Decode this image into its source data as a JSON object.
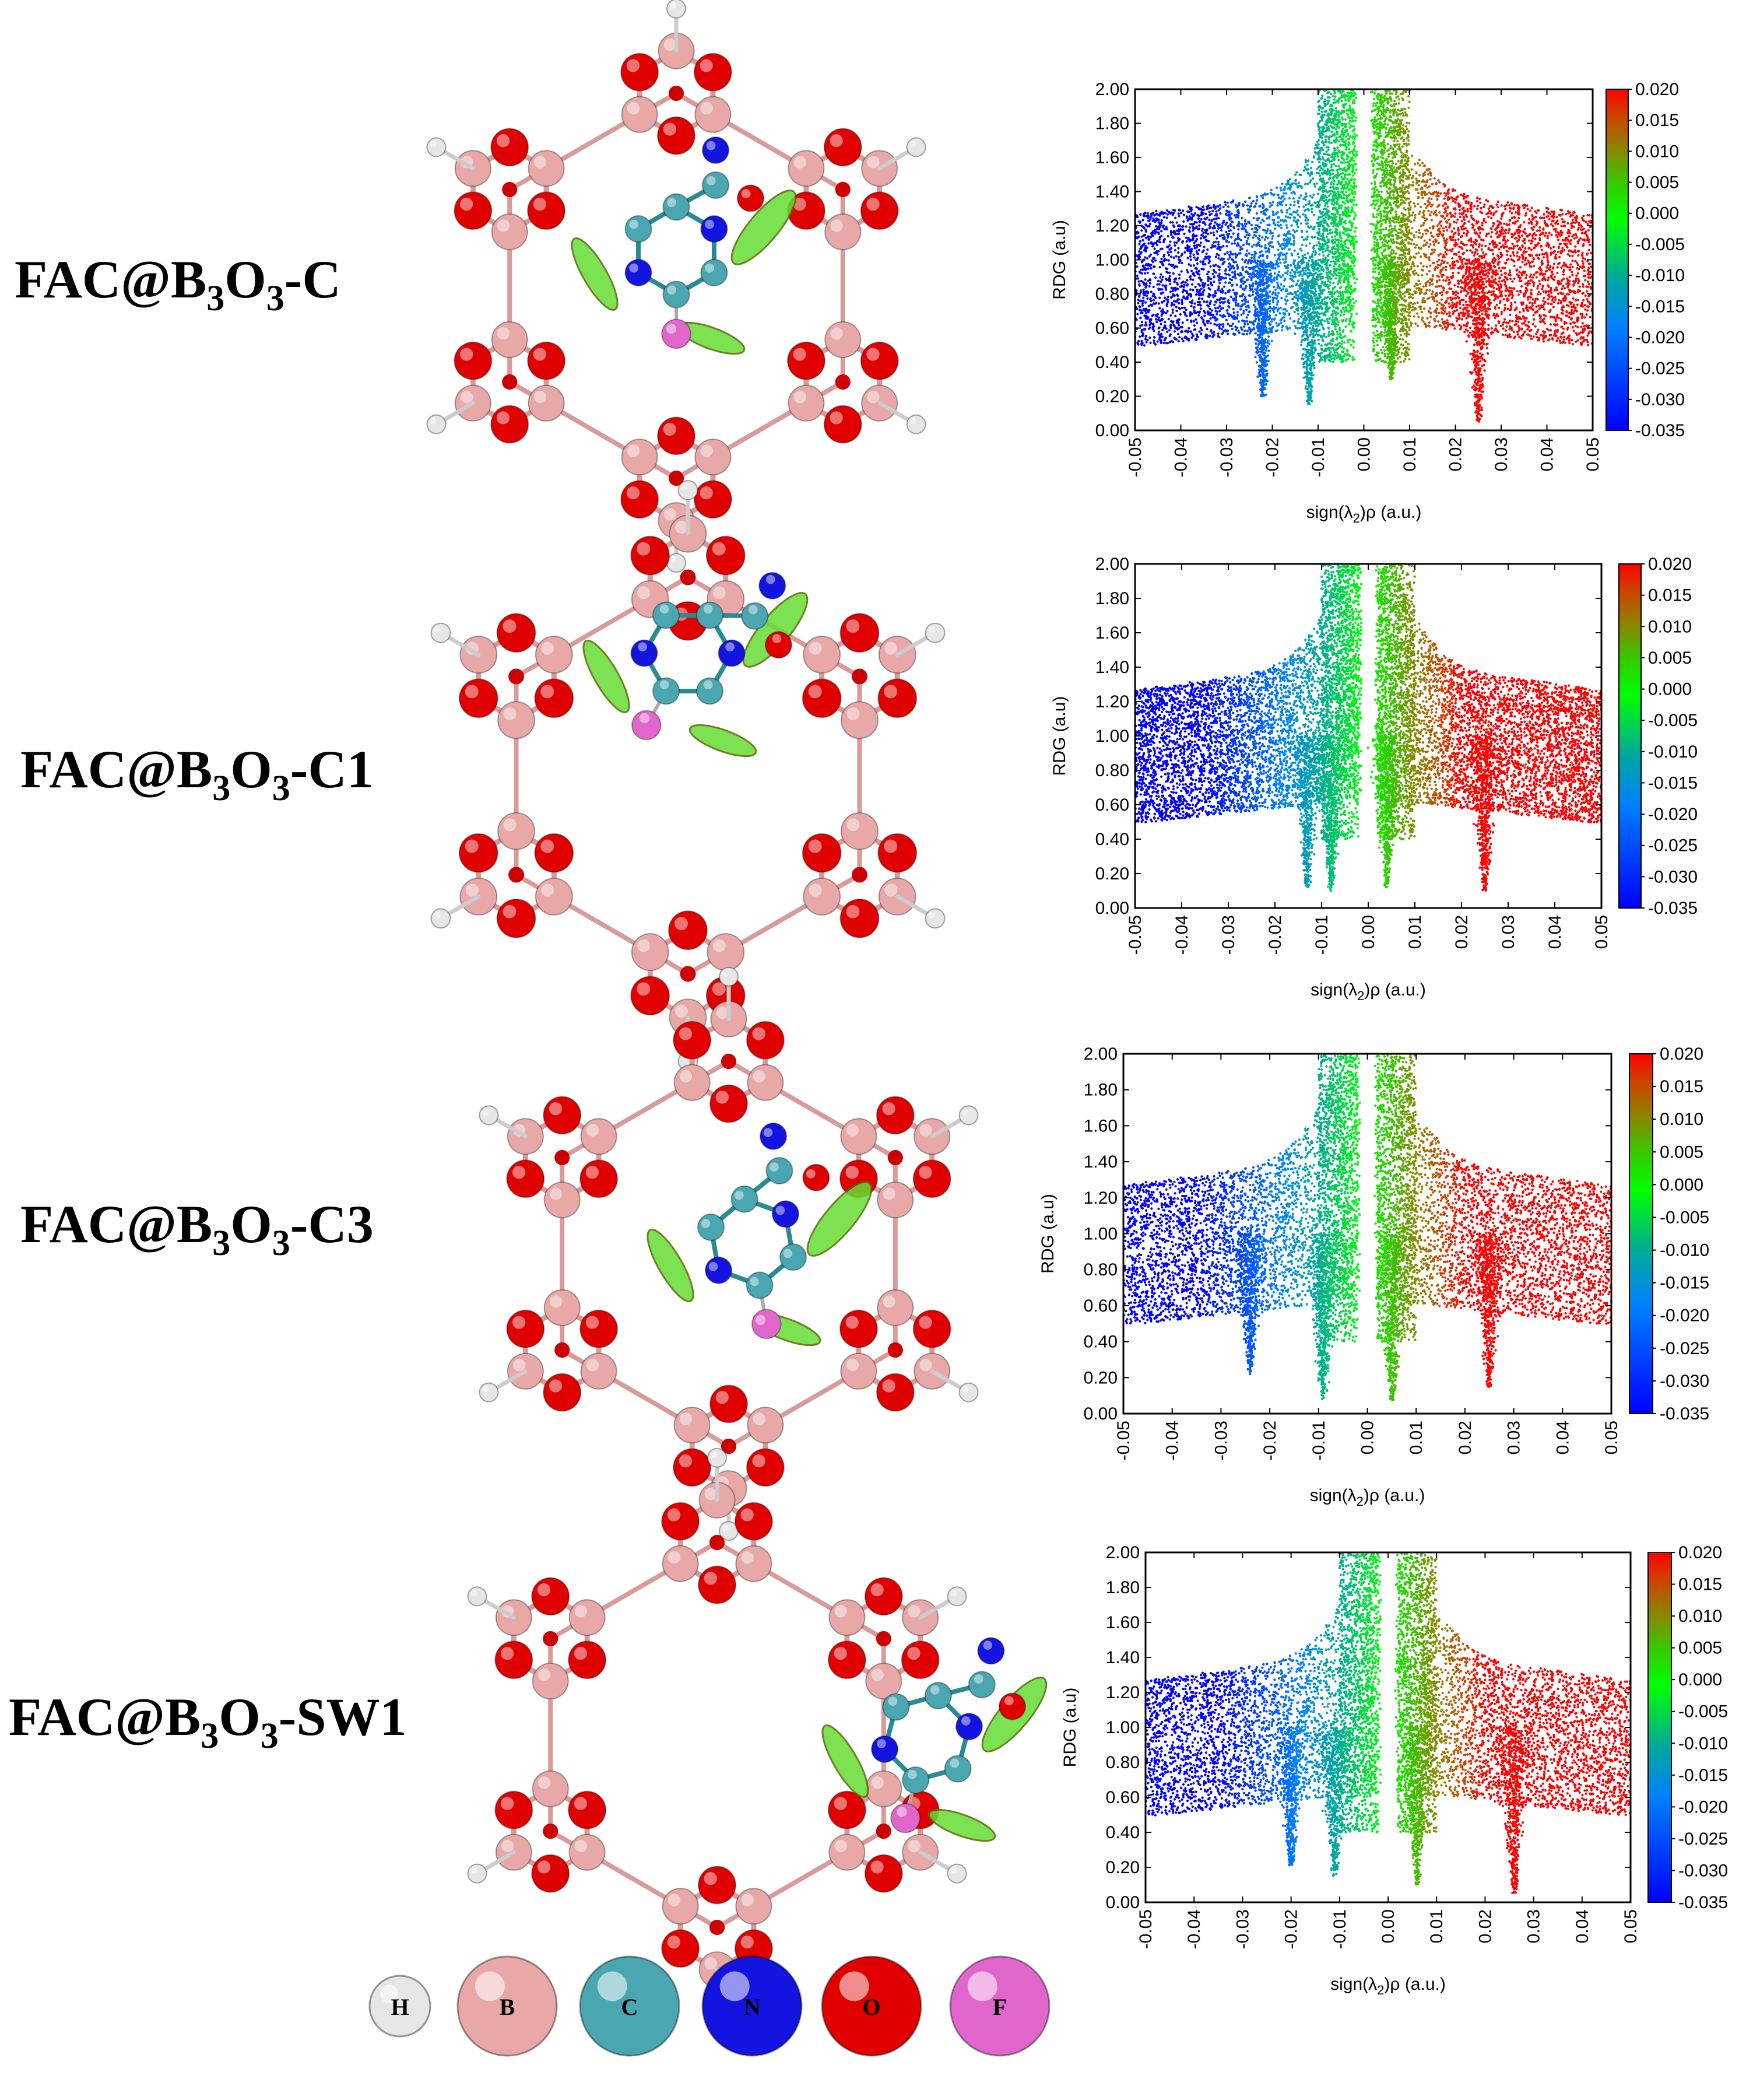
{
  "systems": [
    {
      "main": "FAC@B",
      "sub1": "3",
      "mid": "O",
      "sub2": "3",
      "suffix": "-C"
    },
    {
      "main": "FAC@B",
      "sub1": "3",
      "mid": "O",
      "sub2": "3",
      "suffix": "-C1"
    },
    {
      "main": "FAC@B",
      "sub1": "3",
      "mid": "O",
      "sub2": "3",
      "suffix": "-C3"
    },
    {
      "main": "FAC@B",
      "sub1": "3",
      "mid": "O",
      "sub2": "3",
      "suffix": "-SW1"
    }
  ],
  "atom_legend": [
    {
      "symbol": "H",
      "color": "#e6e6e6"
    },
    {
      "symbol": "B",
      "color": "#e8a8a8"
    },
    {
      "symbol": "C",
      "color": "#4aa6b0"
    },
    {
      "symbol": "N",
      "color": "#1414e0"
    },
    {
      "symbol": "O",
      "color": "#e00000"
    },
    {
      "symbol": "F",
      "color": "#e066cc"
    }
  ],
  "atom_colors": {
    "H": "#e6e6e6",
    "B": "#e8a8a8",
    "C": "#4aa6b0",
    "N": "#1414e0",
    "O": "#e00000",
    "F": "#e066cc",
    "bond": "#d99a9a"
  },
  "chart_data": [
    {
      "type": "scatter",
      "panel": "FAC@B3O3-C",
      "xlabel": "sign(λ2)ρ (a.u.)",
      "ylabel": "RDG (a.u)",
      "xlim": [
        -0.05,
        0.05
      ],
      "ylim": [
        0.0,
        2.0
      ],
      "xticks": [
        "-0.05",
        "-0.04",
        "-0.03",
        "-0.02",
        "-0.01",
        "0.00",
        "0.01",
        "0.02",
        "0.03",
        "0.04",
        "0.05"
      ],
      "yticks": [
        "0.00",
        "0.20",
        "0.40",
        "0.60",
        "0.80",
        "1.00",
        "1.20",
        "1.40",
        "1.60",
        "1.80",
        "2.00"
      ],
      "colorbar": {
        "range": [
          -0.035,
          0.02
        ],
        "ticks": [
          "0.020",
          "0.015",
          "0.010",
          "0.005",
          "0.000",
          "-0.005",
          "-0.010",
          "-0.015",
          "-0.020",
          "-0.025",
          "-0.030",
          "-0.035"
        ]
      },
      "spikes": [
        {
          "x": -0.022,
          "min": 0.18
        },
        {
          "x": -0.012,
          "min": 0.15
        },
        {
          "x": 0.006,
          "min": 0.3
        },
        {
          "x": 0.025,
          "min": 0.05
        }
      ]
    },
    {
      "type": "scatter",
      "panel": "FAC@B3O3-C1",
      "xlabel": "sign(λ2)ρ (a.u.)",
      "ylabel": "RDG (a.u)",
      "xlim": [
        -0.05,
        0.05
      ],
      "ylim": [
        0.0,
        2.0
      ],
      "xticks": [
        "-0.05",
        "-0.04",
        "-0.03",
        "-0.02",
        "-0.01",
        "0.00",
        "0.01",
        "0.02",
        "0.03",
        "0.04",
        "0.05"
      ],
      "yticks": [
        "0.00",
        "0.20",
        "0.40",
        "0.60",
        "0.80",
        "1.00",
        "1.20",
        "1.40",
        "1.60",
        "1.80",
        "2.00"
      ],
      "colorbar": {
        "range": [
          -0.035,
          0.02
        ],
        "ticks": [
          "0.020",
          "0.015",
          "0.010",
          "0.005",
          "0.000",
          "-0.005",
          "-0.010",
          "-0.015",
          "-0.020",
          "-0.025",
          "-0.030",
          "-0.035"
        ]
      },
      "spikes": [
        {
          "x": -0.013,
          "min": 0.12
        },
        {
          "x": -0.008,
          "min": 0.1
        },
        {
          "x": 0.004,
          "min": 0.12
        },
        {
          "x": 0.025,
          "min": 0.1
        }
      ]
    },
    {
      "type": "scatter",
      "panel": "FAC@B3O3-C3",
      "xlabel": "sign(λ2)ρ (a.u.)",
      "ylabel": "RDG (a.u)",
      "xlim": [
        -0.05,
        0.05
      ],
      "ylim": [
        0.0,
        2.0
      ],
      "xticks": [
        "-0.05",
        "-0.04",
        "-0.03",
        "-0.02",
        "-0.01",
        "0.00",
        "0.01",
        "0.02",
        "0.03",
        "0.04",
        "0.05"
      ],
      "yticks": [
        "0.00",
        "0.20",
        "0.40",
        "0.60",
        "0.80",
        "1.00",
        "1.20",
        "1.40",
        "1.60",
        "1.80",
        "2.00"
      ],
      "colorbar": {
        "range": [
          -0.035,
          0.02
        ],
        "ticks": [
          "0.020",
          "0.015",
          "0.010",
          "0.005",
          "0.000",
          "-0.005",
          "-0.010",
          "-0.015",
          "-0.020",
          "-0.025",
          "-0.030",
          "-0.035"
        ]
      },
      "spikes": [
        {
          "x": -0.024,
          "min": 0.22
        },
        {
          "x": -0.009,
          "min": 0.08
        },
        {
          "x": 0.005,
          "min": 0.05
        },
        {
          "x": 0.025,
          "min": 0.15
        }
      ]
    },
    {
      "type": "scatter",
      "panel": "FAC@B3O3-SW1",
      "xlabel": "sign(λ2)ρ (a.u.)",
      "ylabel": "RDG (a.u)",
      "xlim": [
        -0.05,
        0.05
      ],
      "ylim": [
        0.0,
        2.0
      ],
      "xticks": [
        "-0.05",
        "-0.04",
        "-0.03",
        "-0.02",
        "-0.01",
        "0.00",
        "0.01",
        "0.02",
        "0.03",
        "0.04",
        "0.05"
      ],
      "yticks": [
        "0.00",
        "0.20",
        "0.40",
        "0.60",
        "0.80",
        "1.00",
        "1.20",
        "1.40",
        "1.60",
        "1.80",
        "2.00"
      ],
      "colorbar": {
        "range": [
          -0.035,
          0.02
        ],
        "ticks": [
          "0.020",
          "0.015",
          "0.010",
          "0.005",
          "0.000",
          "-0.005",
          "-0.010",
          "-0.015",
          "-0.020",
          "-0.025",
          "-0.030",
          "-0.035"
        ]
      },
      "spikes": [
        {
          "x": -0.02,
          "min": 0.2
        },
        {
          "x": -0.011,
          "min": 0.15
        },
        {
          "x": 0.006,
          "min": 0.1
        },
        {
          "x": 0.026,
          "min": 0.05
        }
      ]
    }
  ]
}
